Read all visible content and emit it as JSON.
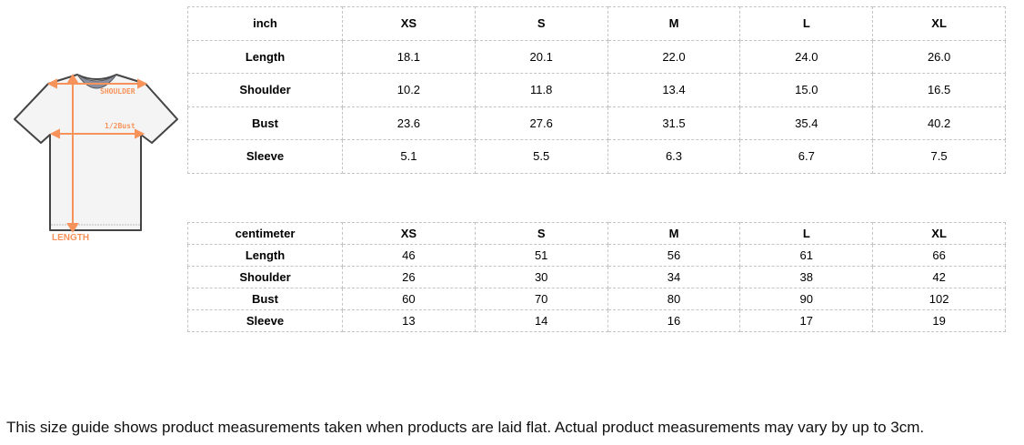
{
  "diagram": {
    "labels": {
      "shoulder": "SHOULDER",
      "bust": "1/2Bust",
      "length": "LENGTH"
    },
    "colors": {
      "arrow": "#f7935a",
      "outline": "#444444",
      "fill": "#f4f4f4"
    }
  },
  "inch_table": {
    "header": [
      "inch",
      "XS",
      "S",
      "M",
      "L",
      "XL"
    ],
    "rows": [
      [
        "Length",
        "18.1",
        "20.1",
        "22.0",
        "24.0",
        "26.0"
      ],
      [
        "Shoulder",
        "10.2",
        "11.8",
        "13.4",
        "15.0",
        "16.5"
      ],
      [
        "Bust",
        "23.6",
        "27.6",
        "31.5",
        "35.4",
        "40.2"
      ],
      [
        "Sleeve",
        "5.1",
        "5.5",
        "6.3",
        "6.7",
        "7.5"
      ]
    ]
  },
  "cm_table": {
    "header": [
      "centimeter",
      "XS",
      "S",
      "M",
      "L",
      "XL"
    ],
    "rows": [
      [
        "Length",
        "46",
        "51",
        "56",
        "61",
        "66"
      ],
      [
        "Shoulder",
        "26",
        "30",
        "34",
        "38",
        "42"
      ],
      [
        "Bust",
        "60",
        "70",
        "80",
        "90",
        "102"
      ],
      [
        "Sleeve",
        "13",
        "14",
        "16",
        "17",
        "19"
      ]
    ]
  },
  "note": "This size guide shows product measurements taken when products are laid flat. Actual product measurements may vary by up to 3cm."
}
